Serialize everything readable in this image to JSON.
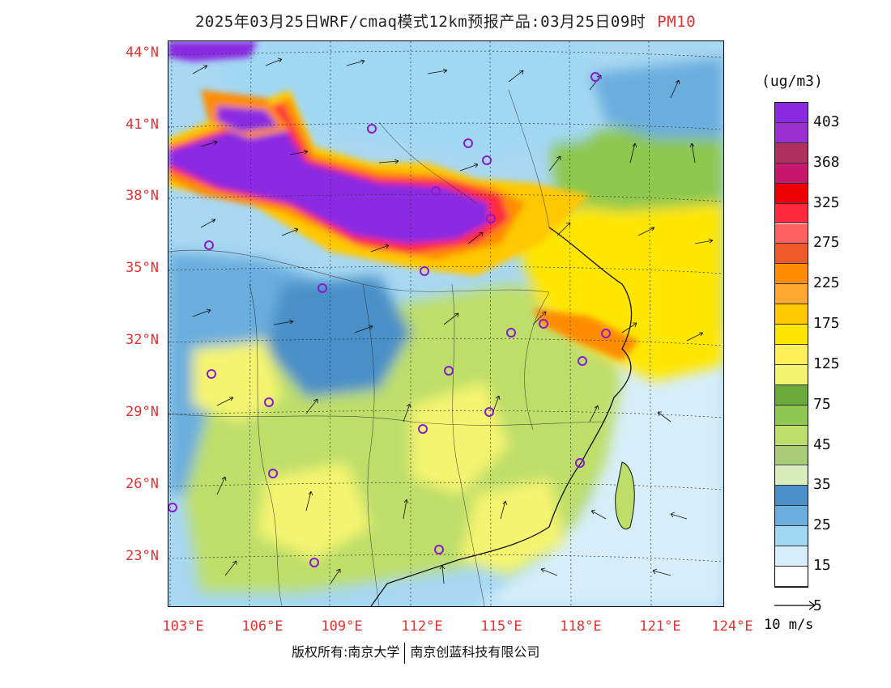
{
  "title": {
    "main": "2025年03月25日WRF/cmaq模式12km预报产品:03月25日09时",
    "product": "PM10"
  },
  "axes": {
    "lat_labels": [
      "44°N",
      "41°N",
      "38°N",
      "35°N",
      "32°N",
      "29°N",
      "26°N",
      "23°N"
    ],
    "lon_labels": [
      "103°E",
      "106°E",
      "109°E",
      "112°E",
      "115°E",
      "118°E",
      "121°E",
      "124°E"
    ]
  },
  "legend": {
    "unit": "(ug/m3)",
    "labels": [
      "403",
      "368",
      "325",
      "275",
      "225",
      "175",
      "125",
      "75",
      "45",
      "35",
      "25",
      "15",
      "5"
    ],
    "colors": [
      "#8a2be2",
      "#9b30d0",
      "#b0305e",
      "#c8186e",
      "#ee0000",
      "#ff2a3c",
      "#ff6060",
      "#ee5a28",
      "#ff8c00",
      "#ffa830",
      "#ffc800",
      "#ffe600",
      "#fff05a",
      "#f4f470",
      "#6aaa3a",
      "#8ec850",
      "#bede6a",
      "#a8cc78",
      "#d8ecbc",
      "#4a90c8",
      "#6aaede",
      "#a0d8f4",
      "#d6eefa",
      "#ffffff"
    ]
  },
  "wind_reference": {
    "label": "10 m/s"
  },
  "footer": {
    "left": "版权所有:南京大学",
    "right": "南京创蓝科技有限公司"
  },
  "colors": {
    "label_red": "#e8312f",
    "station_marker": "#8a1ad2"
  }
}
